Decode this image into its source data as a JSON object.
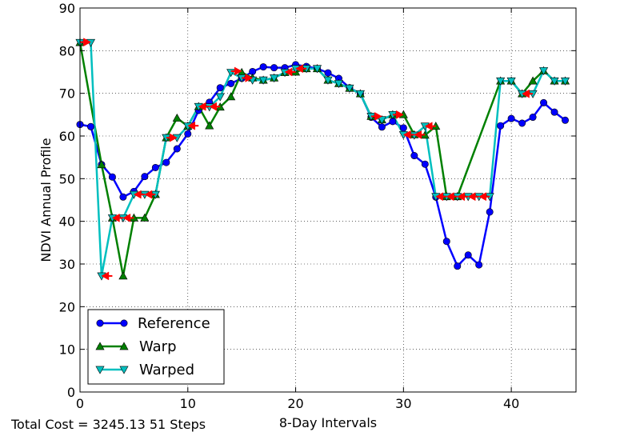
{
  "chart_data": {
    "type": "line",
    "title": "",
    "xlabel": "8-Day Intervals",
    "ylabel": "NDVI Annual Profile",
    "xlim": [
      0,
      46
    ],
    "ylim": [
      0,
      90
    ],
    "xticks": [
      0,
      10,
      20,
      30,
      40
    ],
    "yticks": [
      0,
      10,
      20,
      30,
      40,
      50,
      60,
      70,
      80,
      90
    ],
    "xtick_labels": [
      "0",
      "10",
      "20",
      "30",
      "40"
    ],
    "ytick_labels": [
      "0",
      "10",
      "20",
      "30",
      "40",
      "50",
      "60",
      "70",
      "80",
      "90"
    ],
    "grid": true,
    "legend_position": "lower-left",
    "series": [
      {
        "name": "Reference",
        "color": "#0000ff",
        "marker": "circle",
        "x": [
          0,
          1,
          2,
          3,
          4,
          5,
          6,
          7,
          8,
          9,
          10,
          11,
          12,
          13,
          14,
          15,
          16,
          17,
          18,
          19,
          20,
          21,
          22,
          23,
          24,
          25,
          26,
          27,
          28,
          29,
          30,
          31,
          32,
          33,
          34,
          35,
          36,
          37,
          38,
          39,
          40,
          41,
          42,
          43,
          44,
          45
        ],
        "y": [
          62.7,
          62.2,
          53.3,
          50.4,
          45.7,
          47.0,
          50.5,
          52.6,
          53.8,
          57.0,
          60.5,
          66.0,
          67.9,
          71.3,
          72.3,
          73.5,
          75.1,
          76.2,
          76.0,
          76.0,
          76.7,
          76.3,
          75.8,
          74.8,
          73.5,
          71.3,
          69.9,
          64.4,
          62.1,
          63.4,
          61.9,
          55.4,
          53.4,
          45.7,
          35.3,
          29.5,
          32.1,
          29.8,
          42.2,
          62.4,
          64.1,
          63.0,
          64.4,
          67.8,
          65.6,
          63.7
        ]
      },
      {
        "name": "Warp",
        "color": "#008000",
        "marker": "triangle-up",
        "x": [
          0,
          2,
          3,
          4,
          5,
          6,
          7,
          8,
          9,
          10,
          11,
          12,
          13,
          14,
          15,
          16,
          17,
          18,
          19,
          20,
          21,
          22,
          23,
          24,
          25,
          26,
          27,
          28,
          29,
          30,
          31,
          32,
          33,
          34,
          35,
          39,
          40,
          41,
          42,
          43,
          44,
          45
        ],
        "y": [
          81.9,
          53.3,
          40.8,
          27.2,
          40.8,
          40.8,
          46.3,
          59.6,
          64.2,
          62.3,
          66.9,
          62.4,
          66.8,
          69.2,
          74.9,
          73.6,
          73.1,
          73.6,
          74.9,
          75.0,
          75.8,
          75.8,
          73.1,
          72.3,
          71.2,
          69.9,
          64.6,
          63.8,
          65.0,
          65.0,
          60.3,
          60.2,
          62.3,
          45.8,
          45.8,
          72.9,
          72.9,
          69.9,
          72.9,
          75.3,
          72.9,
          72.9
        ]
      },
      {
        "name": "Warped",
        "color": "#00bfbf",
        "marker": "triangle-down",
        "x": [
          0,
          1,
          2,
          3,
          4,
          5,
          6,
          7,
          8,
          9,
          10,
          11,
          12,
          13,
          14,
          15,
          16,
          17,
          18,
          19,
          20,
          21,
          22,
          23,
          24,
          25,
          26,
          27,
          28,
          29,
          30,
          31,
          32,
          33,
          34,
          35,
          36,
          37,
          38,
          39,
          40,
          41,
          42,
          43,
          44,
          45
        ],
        "y": [
          81.9,
          81.9,
          27.2,
          40.8,
          40.8,
          46.3,
          46.3,
          46.3,
          59.6,
          59.6,
          62.3,
          66.9,
          66.8,
          69.2,
          74.9,
          73.6,
          73.1,
          73.1,
          73.6,
          74.9,
          75.8,
          75.8,
          75.8,
          73.1,
          72.3,
          71.2,
          69.9,
          64.6,
          63.8,
          65.0,
          60.3,
          60.2,
          62.3,
          45.8,
          45.8,
          45.8,
          45.8,
          45.8,
          45.8,
          72.9,
          72.9,
          69.9,
          69.9,
          75.3,
          72.9,
          72.9
        ]
      }
    ],
    "warp_arrows": [
      [
        0,
        82,
        1,
        82
      ],
      [
        3,
        27.2,
        2,
        27.2
      ],
      [
        4,
        40.8,
        3,
        40.8
      ],
      [
        5,
        40.8,
        4,
        40.8
      ],
      [
        6,
        46.3,
        5,
        46.3
      ],
      [
        7,
        46.3,
        6,
        46.3
      ],
      [
        8,
        59.6,
        9,
        59.6
      ],
      [
        11,
        62.4,
        10,
        62.4
      ],
      [
        12,
        66.9,
        11,
        66.9
      ],
      [
        13,
        66.9,
        12,
        66.9
      ],
      [
        14,
        75.2,
        15,
        75.2
      ],
      [
        15,
        73.6,
        16,
        73.6
      ],
      [
        20,
        75.0,
        19,
        75.0
      ],
      [
        21,
        75.8,
        20,
        75.8
      ],
      [
        27,
        64.6,
        28,
        64.6
      ],
      [
        29,
        65.0,
        30,
        65.0
      ],
      [
        31,
        60.3,
        30,
        60.3
      ],
      [
        32,
        60.3,
        31,
        60.3
      ],
      [
        33,
        62.3,
        32,
        62.3
      ],
      [
        34,
        45.8,
        33,
        45.8
      ],
      [
        35,
        45.8,
        34,
        45.8
      ],
      [
        36,
        45.8,
        35,
        45.8
      ],
      [
        37,
        45.8,
        36,
        45.8
      ],
      [
        38,
        45.8,
        37,
        45.8
      ],
      [
        42,
        69.9,
        41,
        69.9
      ]
    ],
    "legend_entries": [
      "Reference",
      "Warp",
      "Warped"
    ],
    "footer": "Total Cost = 3245.13  51 Steps"
  }
}
